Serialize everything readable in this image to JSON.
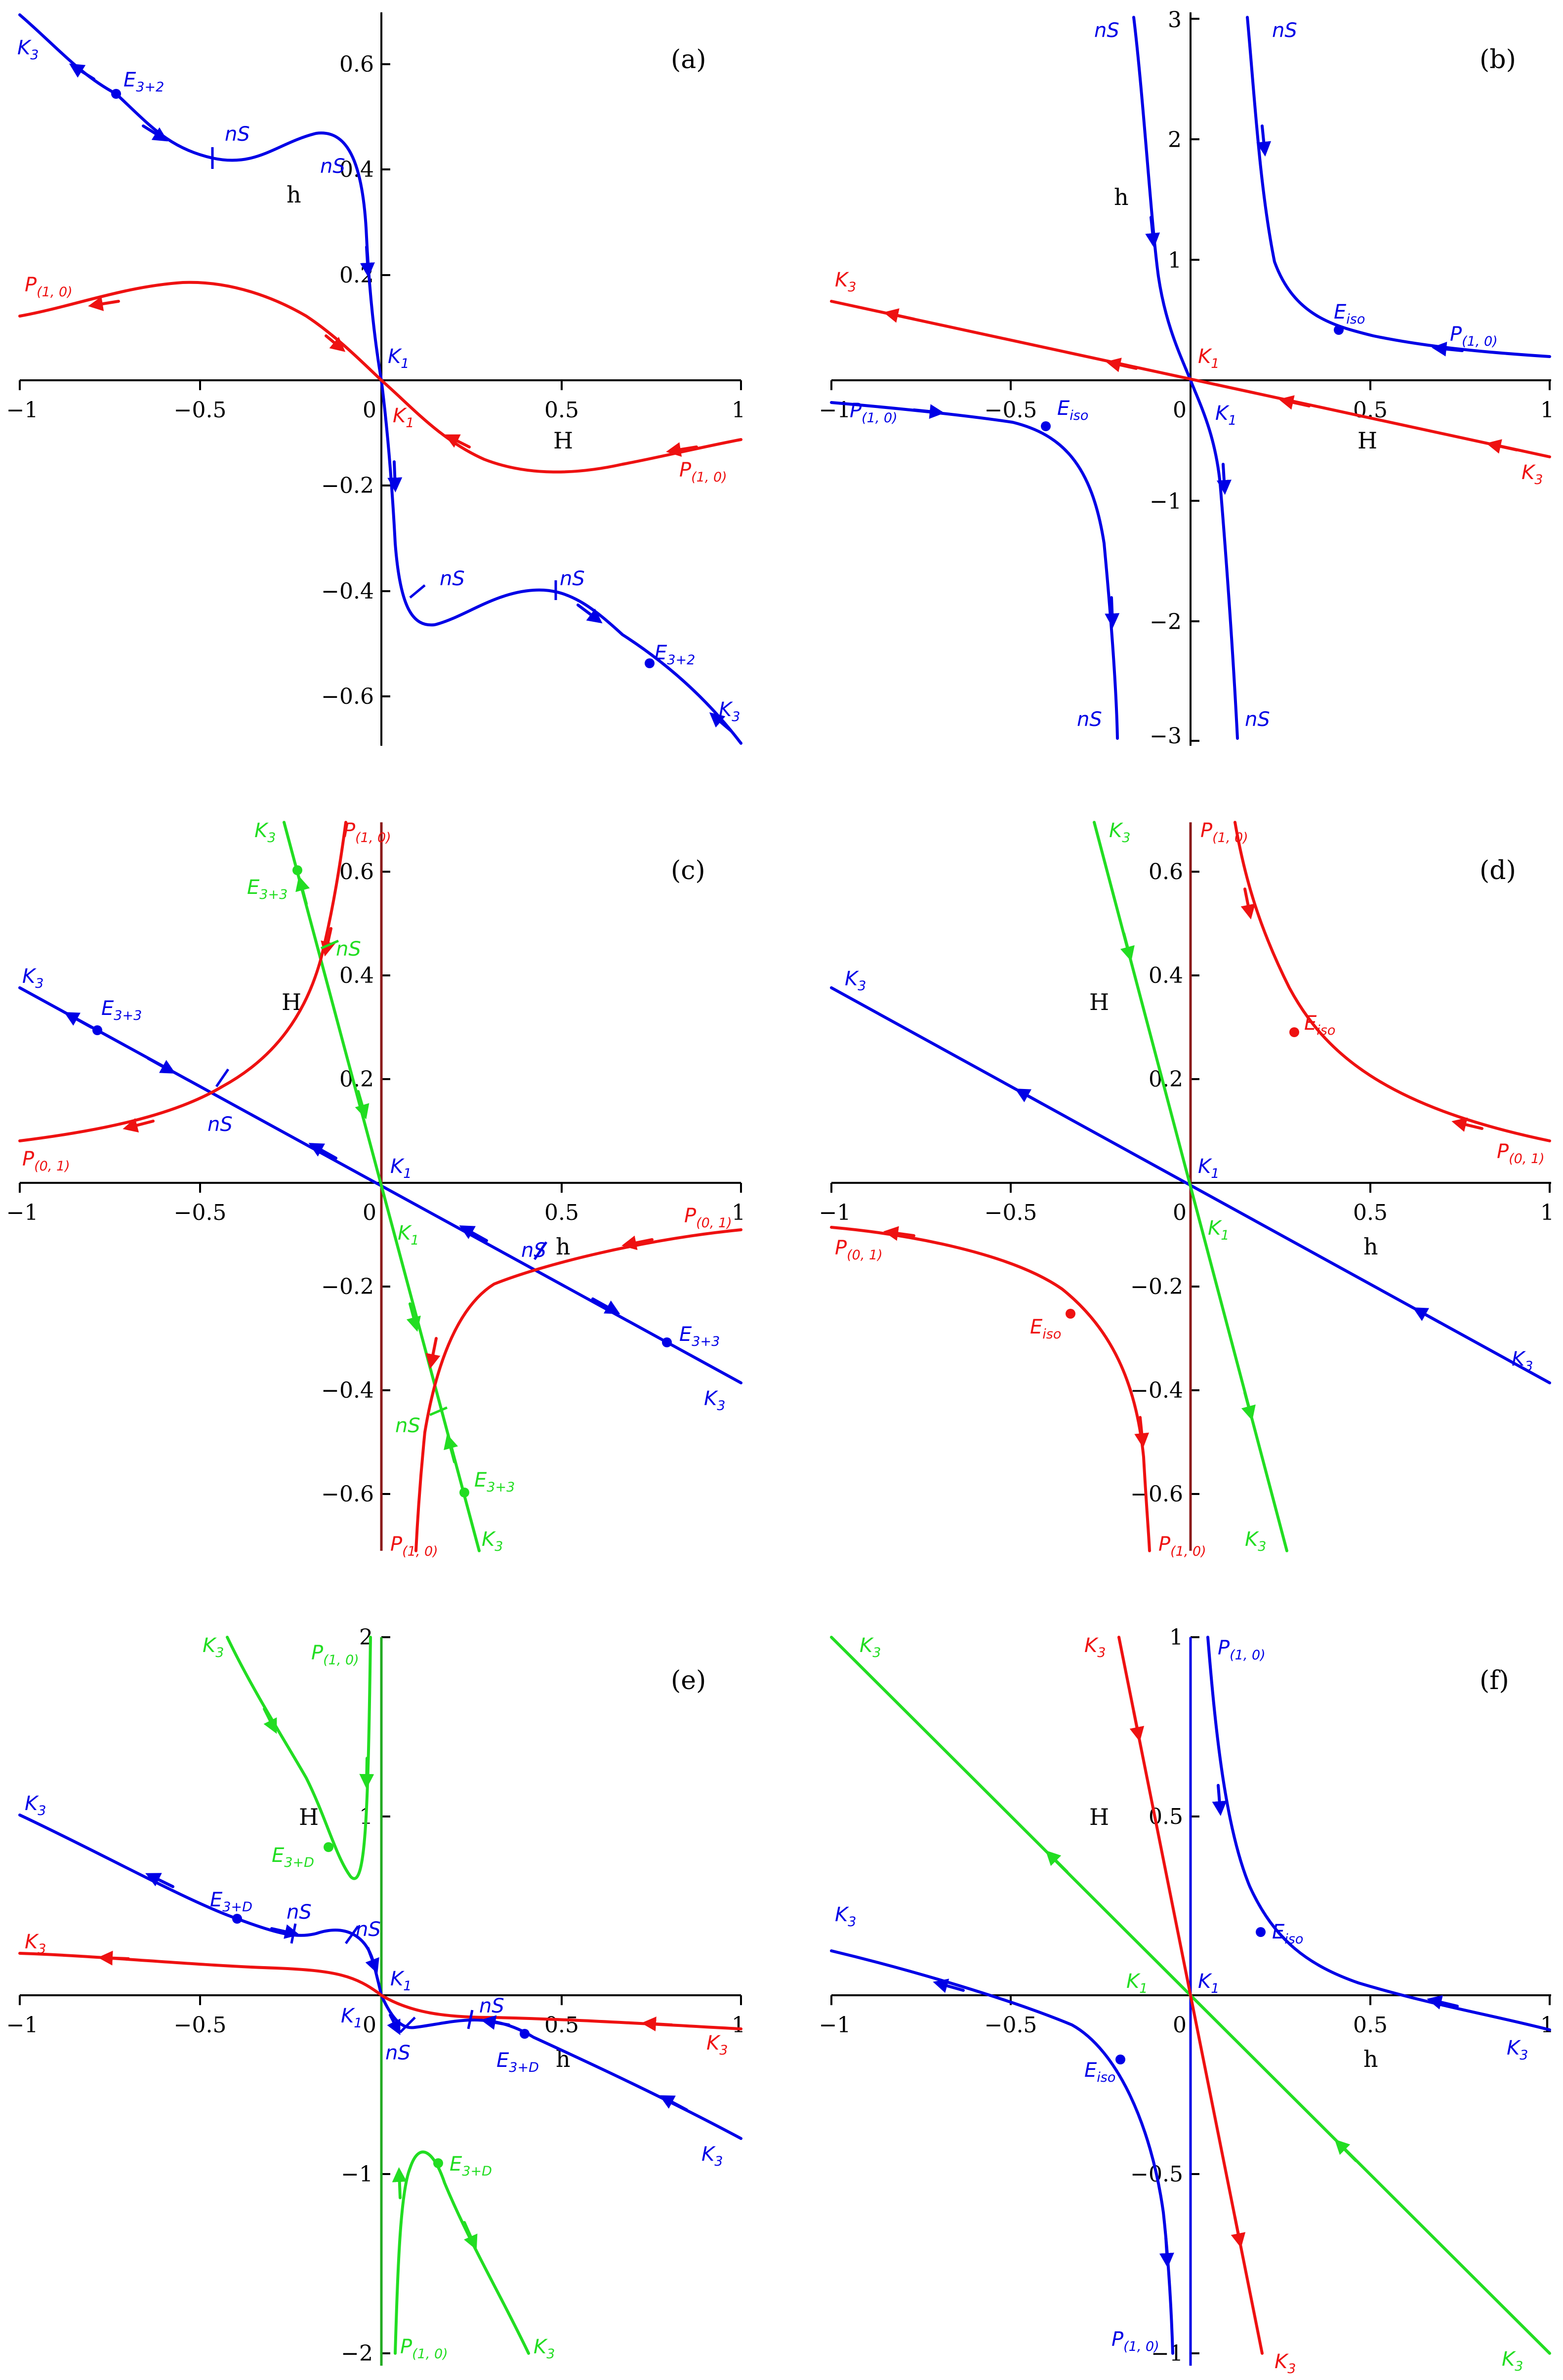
{
  "figure": {
    "panels": [
      {
        "id": "a",
        "label": "(a)",
        "axes": {
          "x_name": "H",
          "y_name": "h",
          "xlim": [
            -1,
            1
          ],
          "ylim": [
            -0.7,
            0.7
          ],
          "xticks": [
            "−1",
            "−0.5",
            "0",
            "0.5",
            "1"
          ],
          "yticks": [
            "0.6",
            "0.4",
            "0.2",
            "−0.2",
            "−0.4",
            "−0.6"
          ]
        },
        "annotations": [
          {
            "text": "K3"
          },
          {
            "text": "E3+2"
          },
          {
            "text": "nS"
          },
          {
            "text": "nS"
          },
          {
            "text": "P(1, 0)"
          },
          {
            "text": "K1"
          },
          {
            "text": "K1"
          },
          {
            "text": "P(1, 0)"
          },
          {
            "text": "nS"
          },
          {
            "text": "nS"
          },
          {
            "text": "E3+2"
          },
          {
            "text": "K3"
          }
        ]
      },
      {
        "id": "b",
        "label": "(b)",
        "axes": {
          "x_name": "H",
          "y_name": "h",
          "xlim": [
            -1,
            1
          ],
          "ylim": [
            -3,
            3
          ],
          "xticks": [
            "−1",
            "−0.5",
            "0",
            "0.5",
            "1"
          ],
          "yticks": [
            "3",
            "2",
            "1",
            "−1",
            "−2",
            "−3"
          ]
        },
        "annotations": [
          {
            "text": "nS"
          },
          {
            "text": "nS"
          },
          {
            "text": "K3"
          },
          {
            "text": "Eiso"
          },
          {
            "text": "P(1, 0)"
          },
          {
            "text": "K1"
          },
          {
            "text": "P(1, 0)"
          },
          {
            "text": "Eiso"
          },
          {
            "text": "K1"
          },
          {
            "text": "K3"
          },
          {
            "text": "nS"
          },
          {
            "text": "nS"
          }
        ]
      },
      {
        "id": "c",
        "label": "(c)",
        "axes": {
          "x_name": "h",
          "y_name": "H",
          "xlim": [
            -1,
            1
          ],
          "ylim": [
            -0.7,
            0.7
          ],
          "xticks": [
            "−1",
            "−0.5",
            "0",
            "0.5",
            "1"
          ],
          "yticks": [
            "0.6",
            "0.4",
            "0.2",
            "−0.2",
            "−0.4",
            "−0.6"
          ]
        },
        "annotations": [
          {
            "text": "K3"
          },
          {
            "text": "P(1, 0)"
          },
          {
            "text": "E3+3"
          },
          {
            "text": "nS"
          },
          {
            "text": "K3"
          },
          {
            "text": "E3+3"
          },
          {
            "text": "nS"
          },
          {
            "text": "P(0, 1)"
          },
          {
            "text": "K1"
          },
          {
            "text": "P(0, 1)"
          },
          {
            "text": "K1"
          },
          {
            "text": "nS"
          },
          {
            "text": "E3+3"
          },
          {
            "text": "K3"
          },
          {
            "text": "nS"
          },
          {
            "text": "E3+3"
          },
          {
            "text": "K3"
          },
          {
            "text": "P(1, 0)"
          }
        ]
      },
      {
        "id": "d",
        "label": "(d)",
        "axes": {
          "x_name": "h",
          "y_name": "H",
          "xlim": [
            -1,
            1
          ],
          "ylim": [
            -0.7,
            0.7
          ],
          "xticks": [
            "−1",
            "−0.5",
            "0",
            "0.5",
            "1"
          ],
          "yticks": [
            "0.6",
            "0.4",
            "0.2",
            "−0.2",
            "−0.4",
            "−0.6"
          ]
        },
        "annotations": [
          {
            "text": "K3"
          },
          {
            "text": "P(1, 0)"
          },
          {
            "text": "K3"
          },
          {
            "text": "Eiso"
          },
          {
            "text": "K1"
          },
          {
            "text": "P(0, 1)"
          },
          {
            "text": "P(0, 1)"
          },
          {
            "text": "K1"
          },
          {
            "text": "Eiso"
          },
          {
            "text": "K3"
          },
          {
            "text": "K3"
          },
          {
            "text": "P(1, 0)"
          }
        ]
      },
      {
        "id": "e",
        "label": "(e)",
        "axes": {
          "x_name": "h",
          "y_name": "H",
          "xlim": [
            -1,
            1
          ],
          "ylim": [
            -2,
            2
          ],
          "xticks": [
            "−1",
            "−0.5",
            "0",
            "0.5",
            "1"
          ],
          "yticks": [
            "2",
            "1",
            "−1",
            "−2"
          ]
        },
        "annotations": [
          {
            "text": "K3"
          },
          {
            "text": "P(1, 0)"
          },
          {
            "text": "K3"
          },
          {
            "text": "E3+D"
          },
          {
            "text": "E3+D"
          },
          {
            "text": "nS"
          },
          {
            "text": "nS"
          },
          {
            "text": "K3"
          },
          {
            "text": "K1"
          },
          {
            "text": "K1"
          },
          {
            "text": "nS"
          },
          {
            "text": "nS"
          },
          {
            "text": "E3+D"
          },
          {
            "text": "K3"
          },
          {
            "text": "E3+D"
          },
          {
            "text": "K3"
          },
          {
            "text": "P(1, 0)"
          },
          {
            "text": "K3"
          }
        ]
      },
      {
        "id": "f",
        "label": "(f)",
        "axes": {
          "x_name": "h",
          "y_name": "H",
          "xlim": [
            -1,
            1
          ],
          "ylim": [
            -1,
            1
          ],
          "xticks": [
            "−1",
            "−0.5",
            "0",
            "0.5",
            "1"
          ],
          "yticks": [
            "1",
            "0.5",
            "−0.5",
            "−1"
          ]
        },
        "annotations": [
          {
            "text": "K3"
          },
          {
            "text": "K3"
          },
          {
            "text": "P(1, 0)"
          },
          {
            "text": "Eiso"
          },
          {
            "text": "K3"
          },
          {
            "text": "K1"
          },
          {
            "text": "K1"
          },
          {
            "text": "Eiso"
          },
          {
            "text": "K3"
          },
          {
            "text": "P(1, 0)"
          },
          {
            "text": "K3"
          },
          {
            "text": "K3"
          }
        ]
      }
    ],
    "colors": {
      "blue": "#0000e6",
      "red": "#ee1111",
      "green": "#22dd22",
      "axis": "#000000"
    }
  }
}
